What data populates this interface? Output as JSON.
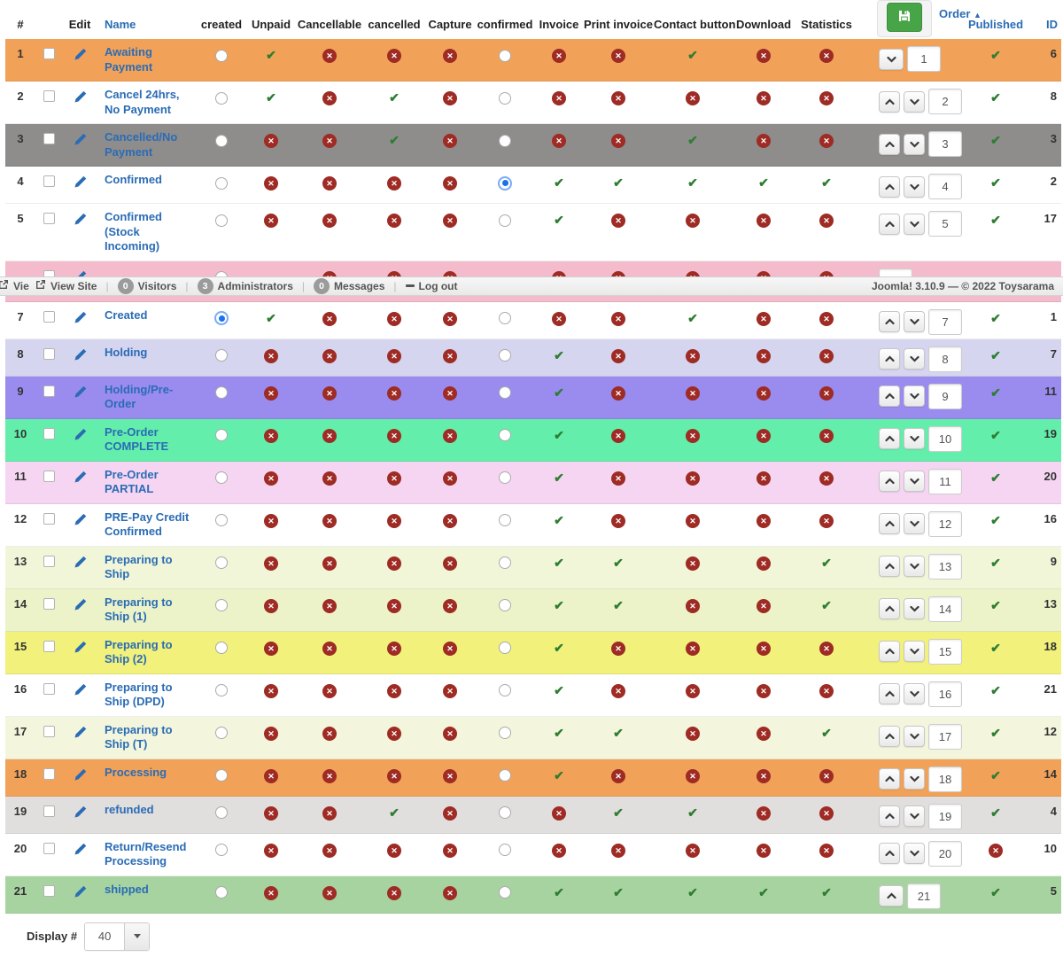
{
  "header": {
    "columns": [
      "#",
      "",
      "Edit",
      "Name",
      "created",
      "Unpaid",
      "Cancellable",
      "cancelled",
      "Capture",
      "confirmed",
      "Invoice",
      "Print invoice",
      "Contact button",
      "Download",
      "Statistics",
      "Order",
      "Published",
      "ID"
    ],
    "order_sort_arrow": "▲",
    "save_icon": "floppy-save-icon"
  },
  "statusbar": {
    "items": [
      {
        "icon": "external-link-icon",
        "label": "Vie"
      },
      {
        "icon": "external-link-icon",
        "label": "View Site"
      },
      {
        "badge": "0",
        "label": "Visitors"
      },
      {
        "badge": "3",
        "label": "Administrators"
      },
      {
        "badge": "0",
        "label": "Messages"
      },
      {
        "icon": "logout-icon",
        "label": "Log out"
      }
    ],
    "right_text": "Joomla! 3.10.9  —  © 2022 Toysarama"
  },
  "footer": {
    "display_label": "Display #",
    "display_value": "40"
  },
  "colors": {
    "check_green": "#2e7d32",
    "cross_red": "#9e2b24",
    "link_blue": "#2a6cb5",
    "save_green": "#47a447",
    "selected_radio_blue": "#1a73e8"
  },
  "table": {
    "rows": [
      {
        "num": "1",
        "name": "Awaiting Payment",
        "bg": "#F2A258",
        "created": "radio",
        "unpaid": "check",
        "cancellable": "cross",
        "cancelled": "cross",
        "capture": "cross",
        "confirmed": "radio",
        "invoice": "cross",
        "print_invoice": "cross",
        "contact_button": "check",
        "download": "cross",
        "statistics": "cross",
        "order": {
          "up": false,
          "down": true,
          "value": "1"
        },
        "published": "check",
        "id": "6"
      },
      {
        "num": "2",
        "name": "Cancel 24hrs, No Payment",
        "bg": "",
        "created": "radio",
        "unpaid": "check",
        "cancellable": "cross",
        "cancelled": "check",
        "capture": "cross",
        "confirmed": "radio",
        "invoice": "cross",
        "print_invoice": "cross",
        "contact_button": "cross",
        "download": "cross",
        "statistics": "cross",
        "order": {
          "up": true,
          "down": true,
          "value": "2"
        },
        "published": "check",
        "id": "8"
      },
      {
        "num": "3",
        "name": "Cancelled/No Payment",
        "bg": "#8F8C8C",
        "created": "radio",
        "unpaid": "cross",
        "cancellable": "cross",
        "cancelled": "check",
        "capture": "cross",
        "confirmed": "radio",
        "invoice": "cross",
        "print_invoice": "cross",
        "contact_button": "check",
        "download": "cross",
        "statistics": "cross",
        "order": {
          "up": true,
          "down": true,
          "value": "3"
        },
        "published": "check",
        "id": "3"
      },
      {
        "num": "4",
        "name": "Confirmed",
        "bg": "",
        "created": "radio",
        "unpaid": "cross",
        "cancellable": "cross",
        "cancelled": "cross",
        "capture": "cross",
        "confirmed": "radio-selected",
        "invoice": "check",
        "print_invoice": "check",
        "contact_button": "check",
        "download": "check",
        "statistics": "check",
        "order": {
          "up": true,
          "down": true,
          "value": "4"
        },
        "published": "check",
        "id": "2"
      },
      {
        "num": "5",
        "name": "Confirmed (Stock Incoming)",
        "bg": "",
        "created": "radio",
        "unpaid": "cross",
        "cancellable": "cross",
        "cancelled": "cross",
        "capture": "cross",
        "confirmed": "radio",
        "invoice": "check",
        "print_invoice": "cross",
        "contact_button": "cross",
        "download": "cross",
        "statistics": "cross",
        "order": {
          "up": true,
          "down": true,
          "value": "5"
        },
        "published": "check",
        "id": "17"
      },
      {
        "num": "",
        "name": "",
        "bg": "#F4BBCD",
        "clipped": true,
        "created": "radio",
        "unpaid": "",
        "cancellable": "cross",
        "cancelled": "cross",
        "capture": "cross",
        "confirmed": "",
        "invoice": "cross",
        "print_invoice": "cross",
        "contact_button": "cross",
        "download": "cross",
        "statistics": "cross",
        "order": {
          "up": false,
          "down": false,
          "value": ""
        },
        "published": "",
        "id": ""
      },
      {
        "num": "7",
        "name": "Created",
        "bg": "",
        "created": "radio-selected",
        "unpaid": "check",
        "cancellable": "cross",
        "cancelled": "cross",
        "capture": "cross",
        "confirmed": "radio",
        "invoice": "cross",
        "print_invoice": "cross",
        "contact_button": "check",
        "download": "cross",
        "statistics": "cross",
        "order": {
          "up": true,
          "down": true,
          "value": "7"
        },
        "published": "check",
        "id": "1"
      },
      {
        "num": "8",
        "name": "Holding",
        "bg": "#D5D5EF",
        "created": "radio",
        "unpaid": "cross",
        "cancellable": "cross",
        "cancelled": "cross",
        "capture": "cross",
        "confirmed": "radio",
        "invoice": "check",
        "print_invoice": "cross",
        "contact_button": "cross",
        "download": "cross",
        "statistics": "cross",
        "order": {
          "up": true,
          "down": true,
          "value": "8"
        },
        "published": "check",
        "id": "7"
      },
      {
        "num": "9",
        "name": "Holding/Pre-Order",
        "bg": "#9A8BEF",
        "created": "radio",
        "unpaid": "cross",
        "cancellable": "cross",
        "cancelled": "cross",
        "capture": "cross",
        "confirmed": "radio",
        "invoice": "check",
        "print_invoice": "cross",
        "contact_button": "cross",
        "download": "cross",
        "statistics": "cross",
        "order": {
          "up": true,
          "down": true,
          "value": "9"
        },
        "published": "check",
        "id": "11"
      },
      {
        "num": "10",
        "name": "Pre-Order COMPLETE",
        "bg": "#63EEAC",
        "created": "radio",
        "unpaid": "cross",
        "cancellable": "cross",
        "cancelled": "cross",
        "capture": "cross",
        "confirmed": "radio",
        "invoice": "check",
        "print_invoice": "cross",
        "contact_button": "cross",
        "download": "cross",
        "statistics": "cross",
        "order": {
          "up": true,
          "down": true,
          "value": "10"
        },
        "published": "check",
        "id": "19"
      },
      {
        "num": "11",
        "name": "Pre-Order PARTIAL",
        "bg": "#F6D5F2",
        "created": "radio",
        "unpaid": "cross",
        "cancellable": "cross",
        "cancelled": "cross",
        "capture": "cross",
        "confirmed": "radio",
        "invoice": "check",
        "print_invoice": "cross",
        "contact_button": "cross",
        "download": "cross",
        "statistics": "cross",
        "order": {
          "up": true,
          "down": true,
          "value": "11"
        },
        "published": "check",
        "id": "20"
      },
      {
        "num": "12",
        "name": "PRE-Pay Credit Confirmed",
        "bg": "",
        "created": "radio",
        "unpaid": "cross",
        "cancellable": "cross",
        "cancelled": "cross",
        "capture": "cross",
        "confirmed": "radio",
        "invoice": "check",
        "print_invoice": "cross",
        "contact_button": "cross",
        "download": "cross",
        "statistics": "cross",
        "order": {
          "up": true,
          "down": true,
          "value": "12"
        },
        "published": "check",
        "id": "16"
      },
      {
        "num": "13",
        "name": "Preparing to Ship",
        "bg": "#F2F6D8",
        "created": "radio",
        "unpaid": "cross",
        "cancellable": "cross",
        "cancelled": "cross",
        "capture": "cross",
        "confirmed": "radio",
        "invoice": "check",
        "print_invoice": "check",
        "contact_button": "cross",
        "download": "cross",
        "statistics": "check",
        "order": {
          "up": true,
          "down": true,
          "value": "13"
        },
        "published": "check",
        "id": "9"
      },
      {
        "num": "14",
        "name": "Preparing to Ship (1)",
        "bg": "#EDF3C8",
        "created": "radio",
        "unpaid": "cross",
        "cancellable": "cross",
        "cancelled": "cross",
        "capture": "cross",
        "confirmed": "radio",
        "invoice": "check",
        "print_invoice": "check",
        "contact_button": "cross",
        "download": "cross",
        "statistics": "check",
        "order": {
          "up": true,
          "down": true,
          "value": "14"
        },
        "published": "check",
        "id": "13"
      },
      {
        "num": "15",
        "name": "Preparing to Ship (2)",
        "bg": "#F1F17B",
        "created": "radio",
        "unpaid": "cross",
        "cancellable": "cross",
        "cancelled": "cross",
        "capture": "cross",
        "confirmed": "radio",
        "invoice": "check",
        "print_invoice": "cross",
        "contact_button": "cross",
        "download": "cross",
        "statistics": "cross",
        "order": {
          "up": true,
          "down": true,
          "value": "15"
        },
        "published": "check",
        "id": "18"
      },
      {
        "num": "16",
        "name": "Preparing to Ship (DPD)",
        "bg": "",
        "created": "radio",
        "unpaid": "cross",
        "cancellable": "cross",
        "cancelled": "cross",
        "capture": "cross",
        "confirmed": "radio",
        "invoice": "check",
        "print_invoice": "cross",
        "contact_button": "cross",
        "download": "cross",
        "statistics": "cross",
        "order": {
          "up": true,
          "down": true,
          "value": "16"
        },
        "published": "check",
        "id": "21"
      },
      {
        "num": "17",
        "name": "Preparing to Ship (T)",
        "bg": "#F3F6DC",
        "created": "radio",
        "unpaid": "cross",
        "cancellable": "cross",
        "cancelled": "cross",
        "capture": "cross",
        "confirmed": "radio",
        "invoice": "check",
        "print_invoice": "check",
        "contact_button": "cross",
        "download": "cross",
        "statistics": "check",
        "order": {
          "up": true,
          "down": true,
          "value": "17"
        },
        "published": "check",
        "id": "12"
      },
      {
        "num": "18",
        "name": "Processing",
        "bg": "#F2A258",
        "created": "radio",
        "unpaid": "cross",
        "cancellable": "cross",
        "cancelled": "cross",
        "capture": "cross",
        "confirmed": "radio",
        "invoice": "check",
        "print_invoice": "cross",
        "contact_button": "cross",
        "download": "cross",
        "statistics": "cross",
        "order": {
          "up": true,
          "down": true,
          "value": "18"
        },
        "published": "check",
        "id": "14"
      },
      {
        "num": "19",
        "name": "refunded",
        "bg": "#E1DEDE",
        "created": "radio",
        "unpaid": "cross",
        "cancellable": "cross",
        "cancelled": "check",
        "capture": "cross",
        "confirmed": "radio",
        "invoice": "cross",
        "print_invoice": "check",
        "contact_button": "check",
        "download": "cross",
        "statistics": "cross",
        "order": {
          "up": true,
          "down": true,
          "value": "19"
        },
        "published": "check",
        "id": "4"
      },
      {
        "num": "20",
        "name": "Return/Resend Processing",
        "bg": "",
        "created": "radio",
        "unpaid": "cross",
        "cancellable": "cross",
        "cancelled": "cross",
        "capture": "cross",
        "confirmed": "radio",
        "invoice": "cross",
        "print_invoice": "cross",
        "contact_button": "cross",
        "download": "cross",
        "statistics": "cross",
        "order": {
          "up": true,
          "down": true,
          "value": "20"
        },
        "published": "cross",
        "id": "10"
      },
      {
        "num": "21",
        "name": "shipped",
        "bg": "#A7D3A1",
        "created": "radio",
        "unpaid": "cross",
        "cancellable": "cross",
        "cancelled": "cross",
        "capture": "cross",
        "confirmed": "radio",
        "invoice": "check",
        "print_invoice": "check",
        "contact_button": "check",
        "download": "check",
        "statistics": "check",
        "order": {
          "up": true,
          "down": false,
          "value": "21"
        },
        "published": "check",
        "id": "5"
      }
    ]
  }
}
